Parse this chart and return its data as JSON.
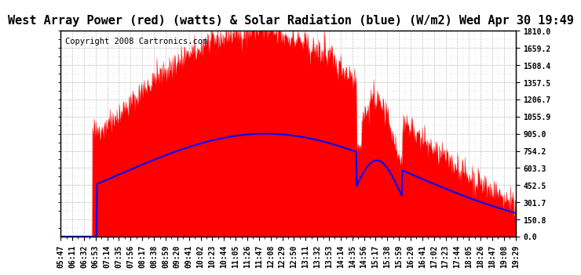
{
  "title": "West Array Power (red) (watts) & Solar Radiation (blue) (W/m2) Wed Apr 30 19:49",
  "copyright": "Copyright 2008 Cartronics.com",
  "ymin": 0.0,
  "ymax": 1810.0,
  "ytick_interval": 150.8333,
  "yticks": [
    0.0,
    150.8,
    301.7,
    452.5,
    603.3,
    754.2,
    905.0,
    1055.9,
    1206.7,
    1357.5,
    1508.4,
    1659.2,
    1810.0
  ],
  "ytick_labels": [
    "0.0",
    "150.8",
    "301.7",
    "452.5",
    "603.3",
    "754.2",
    "905.0",
    "1055.9",
    "1206.7",
    "1357.5",
    "1508.4",
    "1659.2",
    "1810.0"
  ],
  "xtick_labels": [
    "05:47",
    "06:11",
    "06:32",
    "06:53",
    "07:14",
    "07:35",
    "07:56",
    "08:17",
    "08:38",
    "08:59",
    "09:20",
    "09:41",
    "10:02",
    "10:23",
    "10:44",
    "11:05",
    "11:26",
    "11:47",
    "12:08",
    "12:29",
    "12:50",
    "13:11",
    "13:32",
    "13:53",
    "14:14",
    "14:35",
    "14:56",
    "15:17",
    "15:38",
    "15:59",
    "16:20",
    "16:41",
    "17:02",
    "17:23",
    "17:44",
    "18:05",
    "18:26",
    "18:47",
    "19:08",
    "19:29"
  ],
  "bg_color": "#ffffff",
  "plot_bg_color": "#ffffff",
  "red_color": "#ff0000",
  "blue_color": "#0000ff",
  "grid_color": "#aaaaaa",
  "title_fontsize": 11,
  "copyright_fontsize": 7.5,
  "tick_fontsize": 7,
  "title_bg": "#ffffff"
}
